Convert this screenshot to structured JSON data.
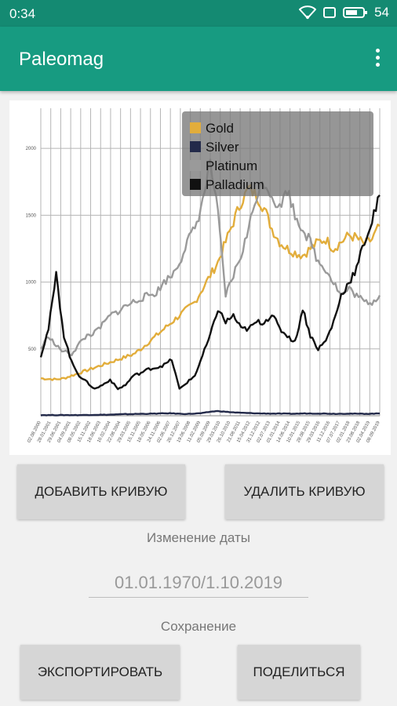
{
  "status": {
    "time": "0:34",
    "battery": "54"
  },
  "appbar": {
    "title": "Paleomag"
  },
  "chart_data": {
    "type": "line",
    "title": "",
    "xlabel": "",
    "ylabel": "",
    "ylim": [
      0,
      2300
    ],
    "ytick_labels": [
      "500",
      "1000",
      "1500",
      "2000"
    ],
    "ytick_values": [
      500,
      1000,
      1500,
      2000
    ],
    "xtick_labels": [
      "02.08.2000",
      "28.01.2001",
      "29.06.2001",
      "04.09.2001",
      "08.05.2002",
      "15.11.2002",
      "18.06.2003",
      "16.02.2004",
      "22.08.2004",
      "29.03.2005",
      "15.11.2005",
      "18.05.2006",
      "24.11.2006",
      "02.06.2007",
      "26.12.2007",
      "19.06.2008",
      "11.02.2009",
      "05.09.2009",
      "29.03.2010",
      "26.10.2010",
      "21.08.2011",
      "15.04.2012",
      "31.12.2012",
      "02.07.2013",
      "01.01.2014",
      "14.06.2014",
      "10.01.2015",
      "28.08.2015",
      "29.03.2016",
      "11.12.2016",
      "07.07.2017",
      "02.01.2018",
      "23.08.2018",
      "02.04.2019",
      "08.09.2019"
    ],
    "legend_position": "top-right",
    "series": [
      {
        "name": "Gold",
        "color": "#e2ad3b",
        "values": [
          280,
          275,
          272,
          280,
          300,
          320,
          340,
          360,
          380,
          400,
          420,
          440,
          460,
          500,
          550,
          600,
          650,
          700,
          750,
          800,
          850,
          950,
          1050,
          1150,
          1300,
          1450,
          1600,
          1700,
          1650,
          1550,
          1400,
          1300,
          1250,
          1220,
          1200,
          1250,
          1300,
          1320,
          1250,
          1300,
          1350,
          1330,
          1280,
          1320,
          1420
        ]
      },
      {
        "name": "Silver",
        "color": "#232a4a",
        "values": [
          5,
          5,
          5,
          5,
          5,
          5,
          6,
          7,
          7,
          8,
          10,
          12,
          13,
          14,
          15,
          16,
          18,
          18,
          15,
          14,
          16,
          20,
          30,
          35,
          30,
          25,
          22,
          20,
          18,
          17,
          16,
          16,
          15,
          15,
          17,
          17,
          17,
          16,
          15,
          15,
          16,
          15,
          15,
          15,
          17
        ]
      },
      {
        "name": "Platinum",
        "color": "#9a9a9a",
        "values": [
          500,
          600,
          520,
          480,
          460,
          540,
          600,
          620,
          680,
          750,
          780,
          820,
          850,
          880,
          900,
          920,
          1000,
          1050,
          1150,
          1300,
          1400,
          1600,
          1900,
          1500,
          900,
          1050,
          1200,
          1400,
          1650,
          1750,
          1650,
          1550,
          1700,
          1500,
          1400,
          1300,
          1150,
          1100,
          1000,
          900,
          950,
          900,
          850,
          850,
          900
        ]
      },
      {
        "name": "Palladium",
        "color": "#111111",
        "values": [
          450,
          650,
          1050,
          600,
          400,
          300,
          250,
          200,
          230,
          270,
          200,
          230,
          300,
          320,
          350,
          360,
          380,
          420,
          200,
          250,
          300,
          450,
          600,
          800,
          700,
          750,
          650,
          650,
          700,
          700,
          760,
          650,
          600,
          550,
          800,
          600,
          500,
          560,
          700,
          900,
          1000,
          1100,
          1300,
          1450,
          1650
        ]
      }
    ]
  },
  "buttons": {
    "add_curve": "ДОБАВИТЬ КРИВУЮ",
    "remove_curve": "УДАЛИТЬ КРИВУЮ",
    "export": "ЭКСПОРТИРОВАТЬ",
    "share": "ПОДЕЛИТЬСЯ"
  },
  "labels": {
    "date_change": "Изменение даты",
    "save": "Сохранение"
  },
  "date_field": {
    "value": "01.01.1970/1.10.2019"
  }
}
